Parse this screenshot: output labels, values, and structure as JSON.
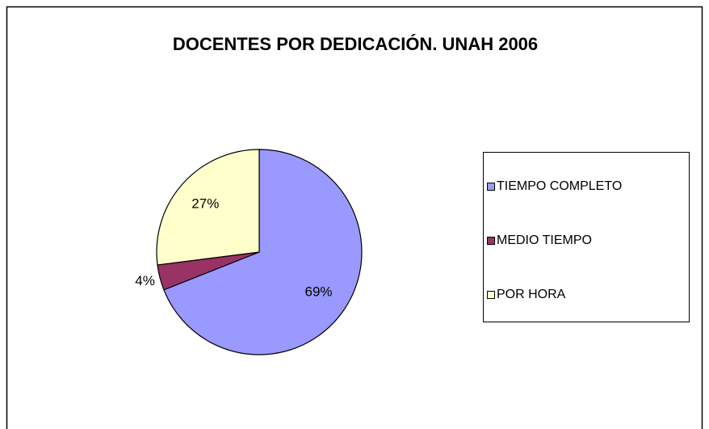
{
  "chart_data": {
    "type": "pie",
    "title": "DOCENTES POR DEDICACIÓN. UNAH 2006",
    "categories": [
      "TIEMPO COMPLETO",
      "MEDIO TIEMPO",
      "POR HORA"
    ],
    "values": [
      69,
      4,
      27
    ],
    "value_labels": [
      "69%",
      "4%",
      "27%"
    ],
    "colors": [
      "#9999ff",
      "#993366",
      "#ffffcc"
    ],
    "legend": "right"
  }
}
